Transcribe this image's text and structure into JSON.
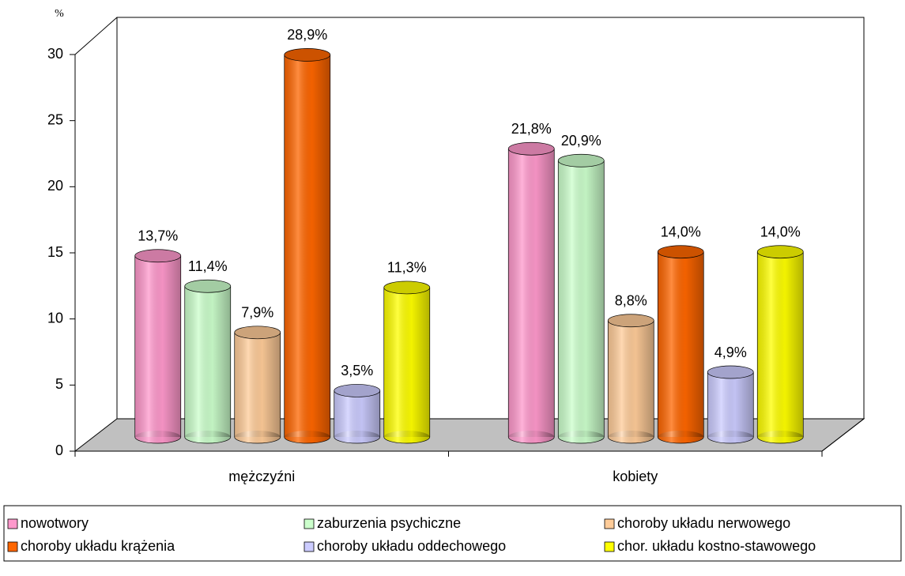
{
  "chart_data": {
    "type": "bar",
    "y_label": "%",
    "categories": [
      "mężczyźni",
      "kobiety"
    ],
    "series": [
      {
        "name": "nowotwory",
        "color": "#ff99cc",
        "values": [
          13.7,
          21.8
        ],
        "value_labels": [
          "13,7%",
          "21,8%"
        ]
      },
      {
        "name": "zaburzenia psychiczne",
        "color": "#ccffcc",
        "values": [
          11.4,
          20.9
        ],
        "value_labels": [
          "11,4%",
          "20,9%"
        ]
      },
      {
        "name": "choroby układu nerwowego",
        "color": "#ffcc99",
        "values": [
          7.9,
          8.8
        ],
        "value_labels": [
          "7,9%",
          "8,8%"
        ]
      },
      {
        "name": "choroby układu krążenia",
        "color": "#ff6600",
        "values": [
          28.9,
          14.0
        ],
        "value_labels": [
          "28,9%",
          "14,0%"
        ]
      },
      {
        "name": "choroby układu oddechowego",
        "color": "#ccccff",
        "values": [
          3.5,
          4.9
        ],
        "value_labels": [
          "3,5%",
          "4,9%"
        ]
      },
      {
        "name": "chor. układu kostno-stawowego",
        "color": "#ffff00",
        "values": [
          11.3,
          14.0
        ],
        "value_labels": [
          "11,3%",
          "14,0%"
        ]
      }
    ],
    "ylim": [
      0,
      30
    ],
    "yticks": [
      0,
      5,
      10,
      15,
      20,
      25,
      30
    ],
    "legend": "bottom"
  }
}
